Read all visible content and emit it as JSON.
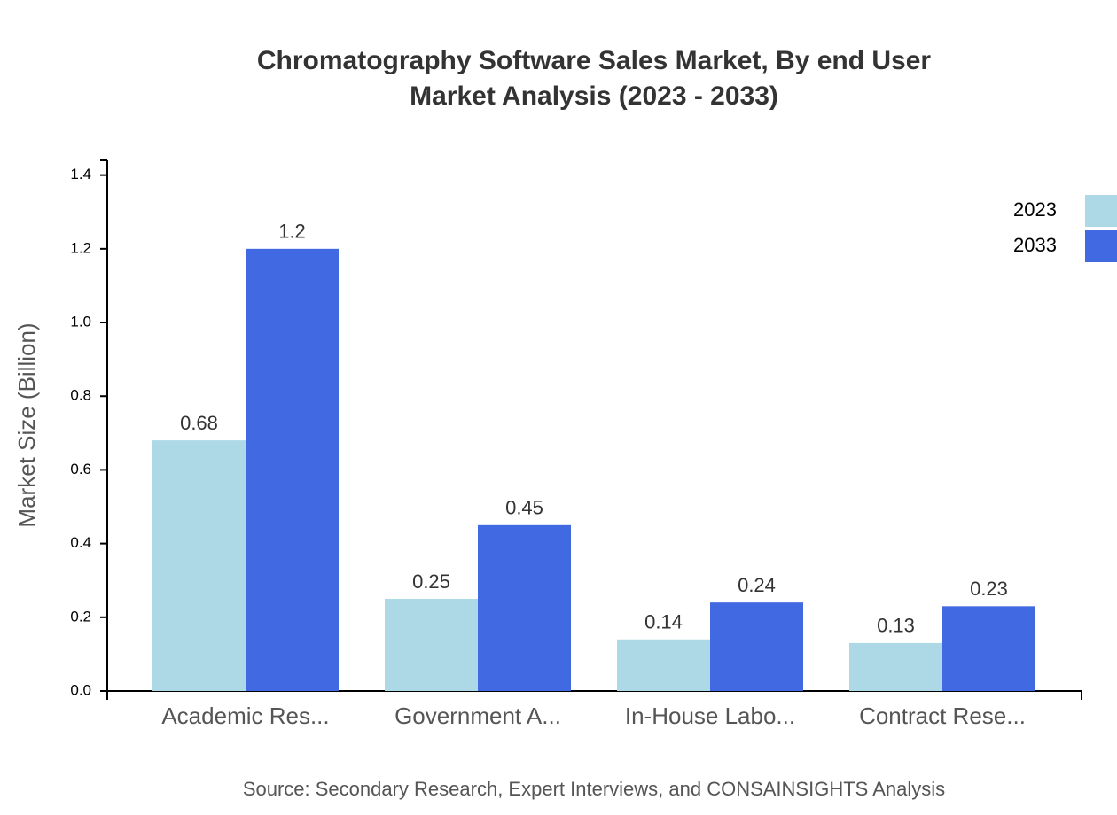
{
  "chart_data": {
    "type": "bar",
    "title": [
      "Chromatography Software Sales Market, By end User",
      "Market Analysis (2023 - 2033)"
    ],
    "y_label": "Market Size (Billion)",
    "source": "Source: Secondary Research, Expert Interviews, and CONSAINSIGHTS Analysis",
    "categories": [
      "Academic Res...",
      "Government A...",
      "In-House Labo...",
      "Contract Rese..."
    ],
    "series": [
      {
        "name": "2023",
        "color": "#add8e6",
        "values": [
          0.68,
          0.25,
          0.14,
          0.13
        ]
      },
      {
        "name": "2033",
        "color": "#4169e1",
        "values": [
          1.2,
          0.45,
          0.24,
          0.23
        ]
      }
    ],
    "ylim": [
      0,
      1.44
    ],
    "yticks": [
      {
        "value": 0,
        "label": "0.0"
      },
      0.2,
      0.4,
      0.6,
      0.8,
      {
        "value": 1,
        "label": "1.0"
      },
      1.2,
      1.4
    ],
    "legend": "top-right",
    "grid": false
  }
}
